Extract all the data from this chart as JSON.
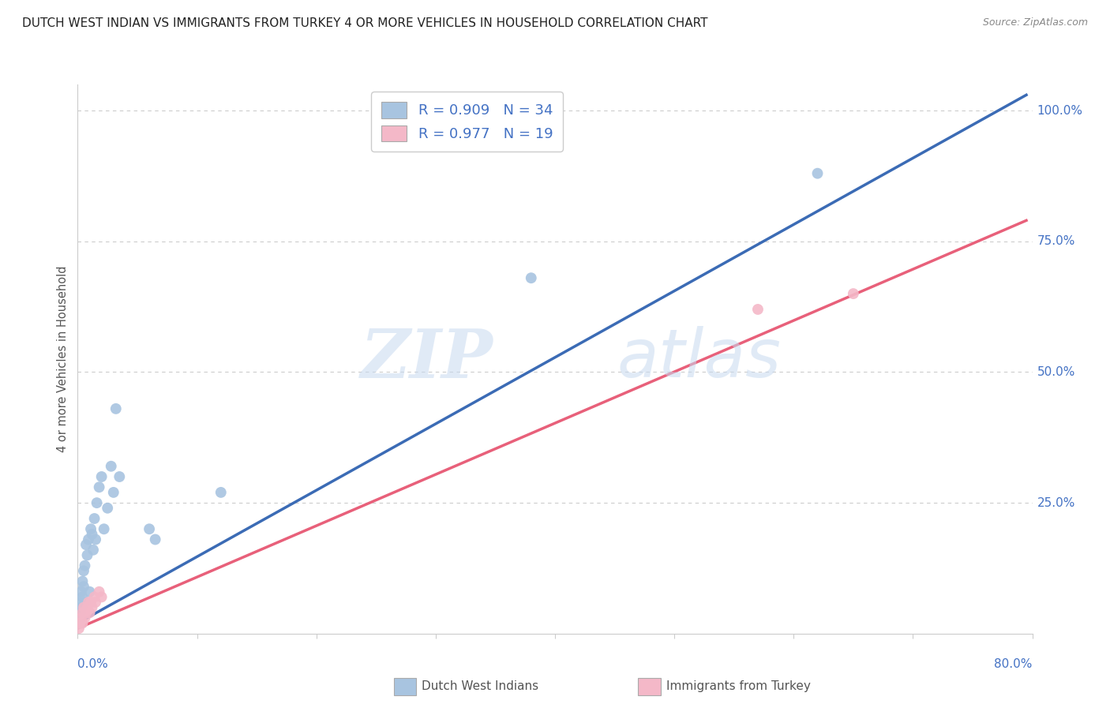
{
  "title": "DUTCH WEST INDIAN VS IMMIGRANTS FROM TURKEY 4 OR MORE VEHICLES IN HOUSEHOLD CORRELATION CHART",
  "source": "Source: ZipAtlas.com",
  "ylabel": "4 or more Vehicles in Household",
  "xlabel_blue": "Dutch West Indians",
  "xlabel_pink": "Immigrants from Turkey",
  "xmin": 0.0,
  "xmax": 0.8,
  "ymin": 0.0,
  "ymax": 1.05,
  "yticks": [
    0.0,
    0.25,
    0.5,
    0.75,
    1.0
  ],
  "ytick_labels": [
    "",
    "25.0%",
    "50.0%",
    "75.0%",
    "100.0%"
  ],
  "blue_R": "0.909",
  "blue_N": "34",
  "pink_R": "0.977",
  "pink_N": "19",
  "blue_color": "#a8c4e0",
  "pink_color": "#f4b8c8",
  "blue_line_color": "#3b6bb5",
  "pink_line_color": "#e8607a",
  "blue_scatter_x": [
    0.001,
    0.002,
    0.002,
    0.003,
    0.003,
    0.004,
    0.004,
    0.005,
    0.005,
    0.006,
    0.006,
    0.007,
    0.008,
    0.009,
    0.01,
    0.011,
    0.012,
    0.013,
    0.014,
    0.015,
    0.016,
    0.018,
    0.02,
    0.022,
    0.025,
    0.028,
    0.03,
    0.032,
    0.035,
    0.06,
    0.065,
    0.12,
    0.38,
    0.62
  ],
  "blue_scatter_y": [
    0.02,
    0.04,
    0.06,
    0.08,
    0.05,
    0.1,
    0.07,
    0.09,
    0.12,
    0.06,
    0.13,
    0.17,
    0.15,
    0.18,
    0.08,
    0.2,
    0.19,
    0.16,
    0.22,
    0.18,
    0.25,
    0.28,
    0.3,
    0.2,
    0.24,
    0.32,
    0.27,
    0.43,
    0.3,
    0.2,
    0.18,
    0.27,
    0.68,
    0.88
  ],
  "pink_scatter_x": [
    0.001,
    0.002,
    0.003,
    0.004,
    0.004,
    0.005,
    0.006,
    0.007,
    0.008,
    0.009,
    0.01,
    0.011,
    0.012,
    0.014,
    0.015,
    0.018,
    0.02,
    0.57,
    0.65
  ],
  "pink_scatter_y": [
    0.01,
    0.02,
    0.03,
    0.04,
    0.02,
    0.05,
    0.03,
    0.04,
    0.05,
    0.06,
    0.04,
    0.06,
    0.05,
    0.07,
    0.06,
    0.08,
    0.07,
    0.62,
    0.65
  ],
  "blue_trendline_x": [
    0.0,
    0.795
  ],
  "blue_trendline_y": [
    0.02,
    1.03
  ],
  "pink_trendline_x": [
    0.0,
    0.795
  ],
  "pink_trendline_y": [
    0.01,
    0.79
  ],
  "watermark_zip": "ZIP",
  "watermark_atlas": "atlas",
  "background_color": "#ffffff",
  "grid_color": "#cccccc",
  "title_color": "#222222",
  "source_color": "#888888",
  "axis_label_color": "#4472c4",
  "tick_color": "#4472c4",
  "ylabel_color": "#555555",
  "legend_text_color": "#4472c4",
  "bottom_label_color": "#555555"
}
